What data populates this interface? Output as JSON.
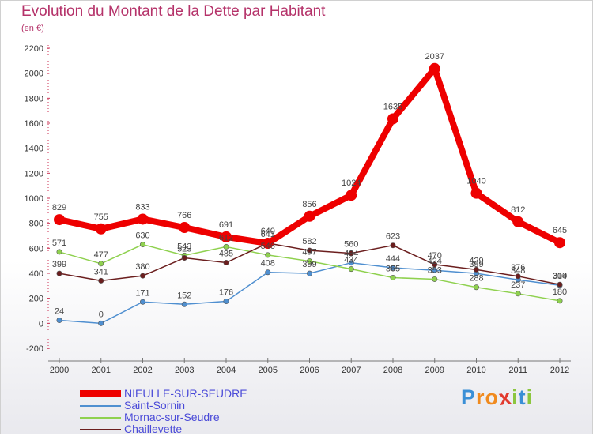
{
  "header": {
    "title": "Evolution du Montant de la Dette par Habitant",
    "unit": "(en €)"
  },
  "brand": {
    "name": "Proxiti",
    "letters": [
      "P",
      "r",
      "o",
      "x",
      "i",
      "t",
      "i"
    ],
    "colors": [
      "#3a8fd6",
      "#f08a1e",
      "#f08a1e",
      "#e23a2e",
      "#8cc63f",
      "#3a8fd6",
      "#8cc63f"
    ]
  },
  "chart_data": {
    "type": "line",
    "x": [
      "2000",
      "2001",
      "2002",
      "2003",
      "2004",
      "2005",
      "2006",
      "2007",
      "2008",
      "2009",
      "2010",
      "2011",
      "2012"
    ],
    "ylim": [
      -200,
      2200
    ],
    "yticks": [
      "-200",
      "0",
      "200",
      "400",
      "600",
      "800",
      "1000",
      "1200",
      "1400",
      "1600",
      "1800",
      "2000",
      "2200"
    ],
    "grid": false,
    "legend_position": "bottom-left",
    "series": [
      {
        "name": "NIEULLE-SUR-SEUDRE",
        "color": "#ee0000",
        "values": [
          829,
          755,
          833,
          766,
          691,
          640,
          856,
          1024,
          1635,
          2037,
          1040,
          812,
          645
        ],
        "labels": [
          "829",
          "755",
          "833",
          "766",
          "691",
          "640",
          "856",
          "1024",
          "1635",
          "2037",
          "1040",
          "812",
          "645"
        ]
      },
      {
        "name": "Saint-Sornin",
        "color": "#4f8fd0",
        "values": [
          24,
          0,
          171,
          152,
          176,
          408,
          399,
          484,
          444,
          424,
          399,
          348,
          304
        ],
        "labels": [
          "24",
          "0",
          "171",
          "152",
          "176",
          "408",
          "399",
          "484",
          "444",
          "424",
          "399",
          "348",
          "304"
        ]
      },
      {
        "name": "Mornac-sur-Seudre",
        "color": "#8fd14f",
        "values": [
          571,
          477,
          630,
          543,
          612,
          546,
          497,
          434,
          365,
          353,
          288,
          237,
          180
        ],
        "labels": [
          "571",
          "477",
          "630",
          "543",
          "612",
          "546",
          "497",
          "434",
          "365",
          "353",
          "288",
          "237",
          "180"
        ]
      },
      {
        "name": "Chaillevette",
        "color": "#6b1e1e",
        "values": [
          399,
          341,
          380,
          523,
          485,
          641,
          582,
          560,
          623,
          470,
          429,
          376,
          310
        ],
        "labels": [
          "399",
          "341",
          "380",
          "523",
          "485",
          "641",
          "582",
          "560",
          "623",
          "470",
          "429",
          "376",
          "310"
        ]
      }
    ]
  }
}
